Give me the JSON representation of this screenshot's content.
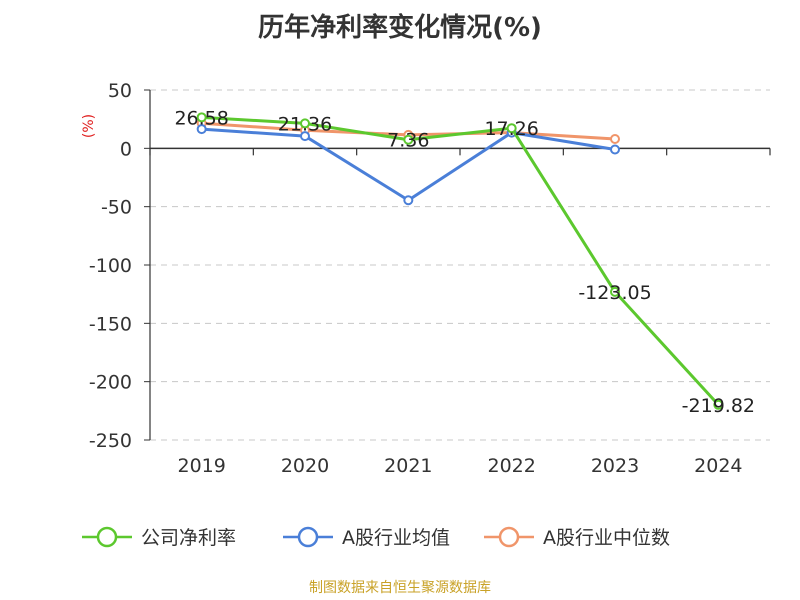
{
  "chart_data": {
    "type": "line",
    "title": "历年净利率变化情况(%)",
    "ylabel": "(%)",
    "xlabel": "",
    "categories": [
      "2019",
      "2020",
      "2021",
      "2022",
      "2023",
      "2024"
    ],
    "ylim": [
      -250,
      50
    ],
    "yticks": [
      50,
      0,
      -50,
      -100,
      -150,
      -200,
      -250
    ],
    "grid": true,
    "legend_position": "bottom",
    "series": [
      {
        "name": "公司净利率",
        "color": "#5cc82e",
        "values": [
          26.58,
          21.36,
          7.36,
          17.26,
          -123.05,
          -219.82
        ],
        "labels": [
          "26.58",
          "21.36",
          "7.36",
          "17.26",
          "-123.05",
          "-219.82"
        ]
      },
      {
        "name": "A股行业均值",
        "color": "#4a7fd8",
        "values": [
          16.5,
          10.5,
          -44.5,
          13.5,
          -1.0,
          null
        ]
      },
      {
        "name": "A股行业中位数",
        "color": "#f0956a",
        "values": [
          21.5,
          15.5,
          11.5,
          13.5,
          8.0,
          null
        ]
      }
    ]
  },
  "footer": {
    "source": "制图数据来自恒生聚源数据库"
  }
}
